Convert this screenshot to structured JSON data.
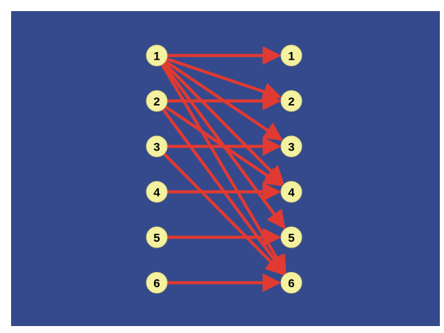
{
  "colors": {
    "panel": "#344a8c",
    "edge": "#e03a32",
    "node_fill": "#f4f1a0"
  },
  "left_nodes": [
    {
      "id": "L1",
      "label": "1"
    },
    {
      "id": "L2",
      "label": "2"
    },
    {
      "id": "L3",
      "label": "3"
    },
    {
      "id": "L4",
      "label": "4"
    },
    {
      "id": "L5",
      "label": "5"
    },
    {
      "id": "L6",
      "label": "6"
    }
  ],
  "right_nodes": [
    {
      "id": "R1",
      "label": "1"
    },
    {
      "id": "R2",
      "label": "2"
    },
    {
      "id": "R3",
      "label": "3"
    },
    {
      "id": "R4",
      "label": "4"
    },
    {
      "id": "R5",
      "label": "5"
    },
    {
      "id": "R6",
      "label": "6"
    }
  ],
  "edges": [
    {
      "from": "L1",
      "to": "R1"
    },
    {
      "from": "L1",
      "to": "R2"
    },
    {
      "from": "L1",
      "to": "R3"
    },
    {
      "from": "L1",
      "to": "R4"
    },
    {
      "from": "L1",
      "to": "R5"
    },
    {
      "from": "L1",
      "to": "R6"
    },
    {
      "from": "L2",
      "to": "R2"
    },
    {
      "from": "L2",
      "to": "R4"
    },
    {
      "from": "L2",
      "to": "R6"
    },
    {
      "from": "L3",
      "to": "R3"
    },
    {
      "from": "L3",
      "to": "R6"
    },
    {
      "from": "L4",
      "to": "R4"
    },
    {
      "from": "L5",
      "to": "R5"
    },
    {
      "from": "L6",
      "to": "R6"
    }
  ]
}
